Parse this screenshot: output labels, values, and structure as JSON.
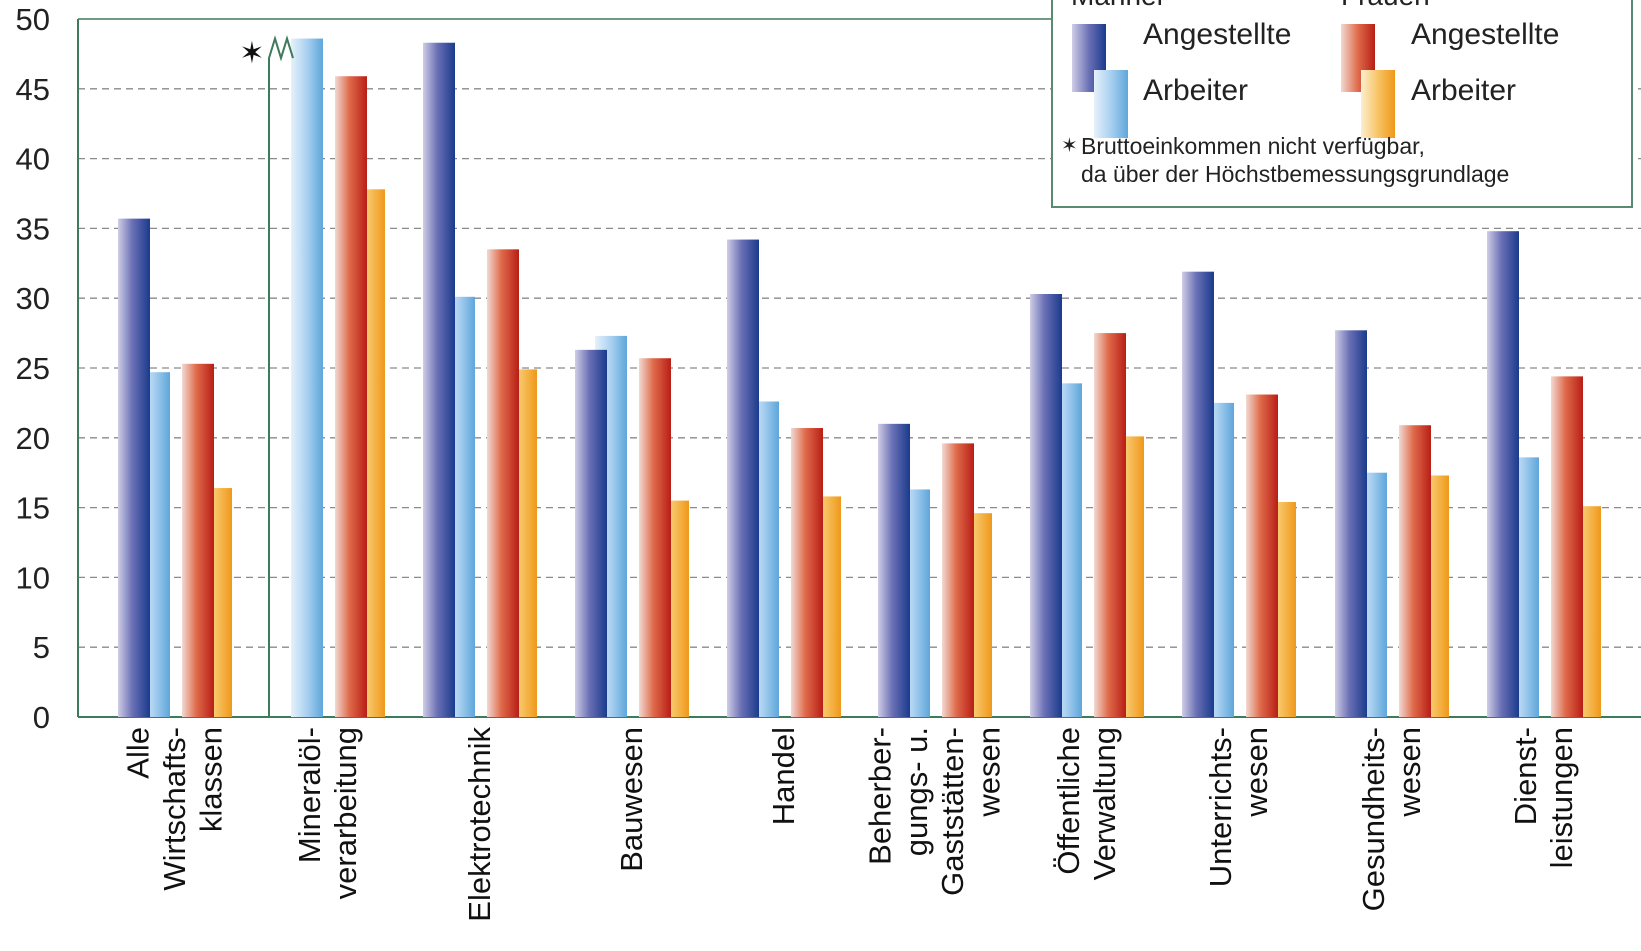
{
  "chart_data": {
    "type": "bar",
    "title": "",
    "xlabel": "",
    "ylabel": "",
    "ylim": [
      0,
      50
    ],
    "yticks": [
      "0",
      "5",
      "10",
      "15",
      "20",
      "25",
      "30",
      "35",
      "40",
      "45",
      "50"
    ],
    "grid": true,
    "legend_position": "top-right",
    "categories": [
      [
        "Alle",
        "Wirtschafts-",
        "klassen"
      ],
      [
        "Mineralöl-",
        "verarbeitung"
      ],
      [
        "Elektrotechnik"
      ],
      [
        "Bauwesen"
      ],
      [
        "Handel"
      ],
      [
        "Beherber-",
        "gungs- u.",
        "Gaststätten-",
        "wesen"
      ],
      [
        "Öffentliche",
        "Verwaltung"
      ],
      [
        "Unterrichts-",
        "wesen"
      ],
      [
        "Gesundheits-",
        "wesen"
      ],
      [
        "Dienst-",
        "leistungen"
      ]
    ],
    "series": [
      {
        "group": "Männer",
        "name": "Angestellte",
        "color": "#1f3f8f",
        "values": [
          35.7,
          null,
          48.3,
          26.3,
          34.2,
          21.0,
          30.3,
          31.9,
          27.7,
          34.8
        ]
      },
      {
        "group": "Männer",
        "name": "Arbeiter",
        "color": "#6fb0e0",
        "values": [
          24.7,
          48.6,
          30.1,
          27.3,
          22.6,
          16.3,
          23.9,
          22.5,
          17.5,
          18.6
        ]
      },
      {
        "group": "Frauen",
        "name": "Angestellte",
        "color": "#c8281c",
        "values": [
          25.3,
          45.9,
          33.5,
          25.7,
          20.7,
          19.6,
          27.5,
          23.1,
          20.9,
          24.4
        ]
      },
      {
        "group": "Frauen",
        "name": "Arbeiter",
        "color": "#f0a020",
        "values": [
          16.4,
          37.8,
          24.9,
          15.5,
          15.8,
          14.6,
          20.1,
          15.4,
          17.3,
          15.1
        ]
      }
    ],
    "annotations": {
      "star_symbol": "✶",
      "footnote_line1": "Bruttoeinkommen nicht verfügbar,",
      "footnote_line2": "da über der Höchstbemessungsgrundlage"
    }
  },
  "legend": {
    "men_header": "Männer",
    "women_header": "Frauen",
    "men_employee": "Angestellte",
    "men_worker": "Arbeiter",
    "women_employee": "Angestellte",
    "women_worker": "Arbeiter"
  }
}
